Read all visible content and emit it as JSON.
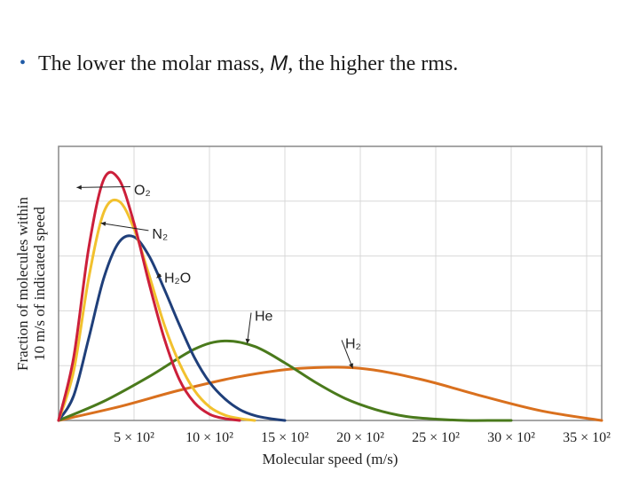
{
  "slide": {
    "bullet": "•",
    "text_before": "The lower the molar mass, ",
    "text_var": "M",
    "text_after": ", the higher the rms."
  },
  "chart_data": {
    "type": "line",
    "title": "",
    "xlabel": "Molecular speed (m/s)",
    "ylabel_line1": "Fraction of molecules within",
    "ylabel_line2": "10 m/s of indicated speed",
    "x_tick_values": [
      500,
      1000,
      1500,
      2000,
      2500,
      3000,
      3500
    ],
    "x_tick_labels": [
      "5 × 10²",
      "10 × 10²",
      "15 × 10²",
      "20 × 10²",
      "25 × 10²",
      "30 × 10²",
      "35 × 10²"
    ],
    "xlim": [
      0,
      3600
    ],
    "ylim": [
      0,
      1
    ],
    "grid": true,
    "series": [
      {
        "name": "O2",
        "label": "O₂",
        "color": "#cc1f3a",
        "x": [
          0,
          100,
          200,
          300,
          400,
          500,
          600,
          700,
          800,
          900,
          1000,
          1100,
          1200
        ],
        "y": [
          0.0,
          0.23,
          0.63,
          0.88,
          0.88,
          0.72,
          0.5,
          0.3,
          0.15,
          0.065,
          0.023,
          0.007,
          0.0
        ]
      },
      {
        "name": "N2",
        "label": "N₂",
        "color": "#f2c12e",
        "x": [
          0,
          100,
          200,
          300,
          400,
          500,
          600,
          700,
          800,
          900,
          1000,
          1100,
          1200,
          1300
        ],
        "y": [
          0.0,
          0.18,
          0.52,
          0.76,
          0.8,
          0.7,
          0.53,
          0.35,
          0.21,
          0.11,
          0.05,
          0.02,
          0.007,
          0.0
        ]
      },
      {
        "name": "H2O",
        "label": "H₂O",
        "color": "#1f3f7a",
        "x": [
          0,
          100,
          200,
          300,
          400,
          500,
          600,
          700,
          800,
          900,
          1000,
          1100,
          1200,
          1300,
          1400,
          1500
        ],
        "y": [
          0.0,
          0.09,
          0.3,
          0.52,
          0.65,
          0.67,
          0.6,
          0.48,
          0.35,
          0.23,
          0.14,
          0.08,
          0.04,
          0.018,
          0.007,
          0.0
        ]
      },
      {
        "name": "He",
        "label": "He",
        "color": "#4a7a1c",
        "x": [
          0,
          300,
          600,
          900,
          1100,
          1300,
          1500,
          1700,
          1900,
          2100,
          2300,
          2500,
          2700,
          2900,
          3000
        ],
        "y": [
          0.0,
          0.07,
          0.16,
          0.26,
          0.29,
          0.27,
          0.21,
          0.14,
          0.08,
          0.04,
          0.015,
          0.005,
          0.0,
          0.0,
          0.0
        ]
      },
      {
        "name": "H2",
        "label": "H₂",
        "color": "#d9701e",
        "x": [
          0,
          400,
          800,
          1200,
          1600,
          2000,
          2400,
          2800,
          3200,
          3600
        ],
        "y": [
          0.0,
          0.05,
          0.11,
          0.16,
          0.19,
          0.19,
          0.15,
          0.09,
          0.035,
          0.0
        ]
      }
    ],
    "annotations": [
      {
        "series": "O2",
        "text": "O₂",
        "point_x": 120,
        "point_y": 0.85,
        "text_x": 500,
        "text_y": 0.84
      },
      {
        "series": "N2",
        "text": "N₂",
        "point_x": 280,
        "point_y": 0.72,
        "text_x": 620,
        "text_y": 0.68
      },
      {
        "series": "H2O",
        "text": "H₂O",
        "point_x": 650,
        "point_y": 0.52,
        "text_x": 700,
        "text_y": 0.52
      },
      {
        "series": "He",
        "text": "He",
        "point_x": 1250,
        "point_y": 0.28,
        "text_x": 1300,
        "text_y": 0.38
      },
      {
        "series": "H2",
        "text": "H₂",
        "point_x": 1950,
        "point_y": 0.19,
        "text_x": 1900,
        "text_y": 0.28
      }
    ]
  }
}
